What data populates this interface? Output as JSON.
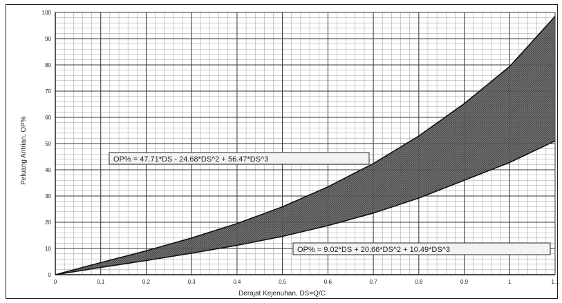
{
  "chart_data": {
    "type": "area",
    "title": "",
    "xlabel": "Derajat Kejenuhan, DS=Q/C",
    "ylabel": "Peluang Antrian, OP%",
    "xlim": [
      0,
      1.1
    ],
    "ylim": [
      0,
      100
    ],
    "xticks": [
      "0",
      "0.1",
      "0.2",
      "0.3",
      "0.4",
      "0.5",
      "0.6",
      "0.7",
      "0.8",
      "0.9",
      "1",
      "1.1"
    ],
    "yticks": [
      "0",
      "10",
      "20",
      "30",
      "40",
      "50",
      "60",
      "70",
      "80",
      "90",
      "100"
    ],
    "grid": true,
    "x": [
      0,
      0.1,
      0.2,
      0.3,
      0.4,
      0.5,
      0.6,
      0.7,
      0.8,
      0.9,
      1.0,
      1.1
    ],
    "series": [
      {
        "values": [
          0,
          2.8,
          5.4,
          8.2,
          11.2,
          14.6,
          18.7,
          23.5,
          29.2,
          36.0,
          42.8,
          51.0
        ]
      },
      {
        "values": [
          0,
          4.6,
          9.1,
          14.0,
          19.5,
          25.9,
          33.5,
          42.4,
          52.9,
          65.2,
          79.4,
          98.5
        ]
      }
    ],
    "fill_between_series": true,
    "annotations": [
      {
        "text": "OP% = 47.71*DS - 24.68*DS^2 + 56.47*DS^3"
      },
      {
        "text": "OP% = 9.02*DS + 20.66*DS^2 + 10.49*DS^3"
      }
    ]
  }
}
